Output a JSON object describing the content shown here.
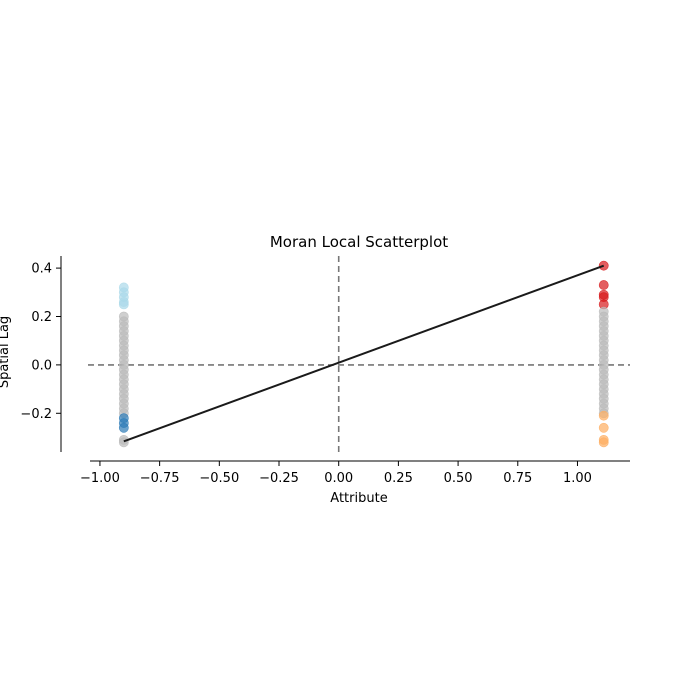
{
  "chart_data": {
    "type": "scatter",
    "title": "Moran Local Scatterplot",
    "xlabel": "Attribute",
    "ylabel": "Spatial Lag",
    "xlim": [
      -1.05,
      1.22
    ],
    "ylim": [
      -0.36,
      0.45
    ],
    "x_ticks": [
      -1.0,
      -0.75,
      -0.5,
      -0.25,
      0.0,
      0.25,
      0.5,
      0.75,
      1.0
    ],
    "x_tick_labels": [
      "−1.00",
      "−0.75",
      "−0.50",
      "−0.25",
      "0.00",
      "0.25",
      "0.50",
      "0.75",
      "1.00"
    ],
    "y_ticks": [
      -0.2,
      0.0,
      0.2,
      0.4
    ],
    "y_tick_labels": [
      "−0.2",
      "0.0",
      "0.2",
      "0.4"
    ],
    "reference_lines": {
      "x": 0.0,
      "y": 0.0,
      "style": "dashed",
      "color": "#777777"
    },
    "fit_line": {
      "x": [
        -0.9,
        1.11
      ],
      "y": [
        -0.316,
        0.41
      ],
      "color": "#1a1a1a"
    },
    "grid": false,
    "legend": "none",
    "colors": {
      "high_high": "#d7191c",
      "low_high": "#abd9e9",
      "low_low": "#2c7bb6",
      "high_low": "#fdae61",
      "not_significant": "#bababa"
    },
    "series": [
      {
        "x": -0.9,
        "points": [
          {
            "y": 0.32,
            "color": "#abd9e9"
          },
          {
            "y": 0.3,
            "color": "#abd9e9"
          },
          {
            "y": 0.28,
            "color": "#abd9e9"
          },
          {
            "y": 0.26,
            "color": "#abd9e9"
          },
          {
            "y": 0.25,
            "color": "#abd9e9"
          },
          {
            "y": 0.2,
            "color": "#bababa"
          },
          {
            "y": 0.18,
            "color": "#bababa"
          },
          {
            "y": 0.16,
            "color": "#bababa"
          },
          {
            "y": 0.14,
            "color": "#bababa"
          },
          {
            "y": 0.12,
            "color": "#bababa"
          },
          {
            "y": 0.1,
            "color": "#bababa"
          },
          {
            "y": 0.08,
            "color": "#bababa"
          },
          {
            "y": 0.06,
            "color": "#bababa"
          },
          {
            "y": 0.04,
            "color": "#bababa"
          },
          {
            "y": 0.02,
            "color": "#bababa"
          },
          {
            "y": 0.0,
            "color": "#bababa"
          },
          {
            "y": -0.02,
            "color": "#bababa"
          },
          {
            "y": -0.04,
            "color": "#bababa"
          },
          {
            "y": -0.06,
            "color": "#bababa"
          },
          {
            "y": -0.08,
            "color": "#bababa"
          },
          {
            "y": -0.1,
            "color": "#bababa"
          },
          {
            "y": -0.12,
            "color": "#bababa"
          },
          {
            "y": -0.14,
            "color": "#bababa"
          },
          {
            "y": -0.16,
            "color": "#bababa"
          },
          {
            "y": -0.18,
            "color": "#bababa"
          },
          {
            "y": -0.2,
            "color": "#bababa"
          },
          {
            "y": -0.22,
            "color": "#2c7bb6"
          },
          {
            "y": -0.24,
            "color": "#2c7bb6"
          },
          {
            "y": -0.26,
            "color": "#2c7bb6"
          },
          {
            "y": -0.31,
            "color": "#bababa"
          },
          {
            "y": -0.32,
            "color": "#bababa"
          }
        ]
      },
      {
        "x": 1.11,
        "points": [
          {
            "y": 0.41,
            "color": "#d7191c"
          },
          {
            "y": 0.33,
            "color": "#d7191c"
          },
          {
            "y": 0.29,
            "color": "#d7191c"
          },
          {
            "y": 0.28,
            "color": "#d7191c"
          },
          {
            "y": 0.25,
            "color": "#d7191c"
          },
          {
            "y": 0.22,
            "color": "#bababa"
          },
          {
            "y": 0.2,
            "color": "#bababa"
          },
          {
            "y": 0.18,
            "color": "#bababa"
          },
          {
            "y": 0.16,
            "color": "#bababa"
          },
          {
            "y": 0.14,
            "color": "#bababa"
          },
          {
            "y": 0.12,
            "color": "#bababa"
          },
          {
            "y": 0.1,
            "color": "#bababa"
          },
          {
            "y": 0.08,
            "color": "#bababa"
          },
          {
            "y": 0.06,
            "color": "#bababa"
          },
          {
            "y": 0.04,
            "color": "#bababa"
          },
          {
            "y": 0.02,
            "color": "#bababa"
          },
          {
            "y": 0.0,
            "color": "#bababa"
          },
          {
            "y": -0.02,
            "color": "#bababa"
          },
          {
            "y": -0.04,
            "color": "#bababa"
          },
          {
            "y": -0.06,
            "color": "#bababa"
          },
          {
            "y": -0.08,
            "color": "#bababa"
          },
          {
            "y": -0.1,
            "color": "#bababa"
          },
          {
            "y": -0.12,
            "color": "#bababa"
          },
          {
            "y": -0.14,
            "color": "#bababa"
          },
          {
            "y": -0.16,
            "color": "#bababa"
          },
          {
            "y": -0.18,
            "color": "#bababa"
          },
          {
            "y": -0.2,
            "color": "#bababa"
          },
          {
            "y": -0.21,
            "color": "#fdae61"
          },
          {
            "y": -0.26,
            "color": "#fdae61"
          },
          {
            "y": -0.31,
            "color": "#fdae61"
          },
          {
            "y": -0.32,
            "color": "#fdae61"
          }
        ]
      }
    ]
  }
}
